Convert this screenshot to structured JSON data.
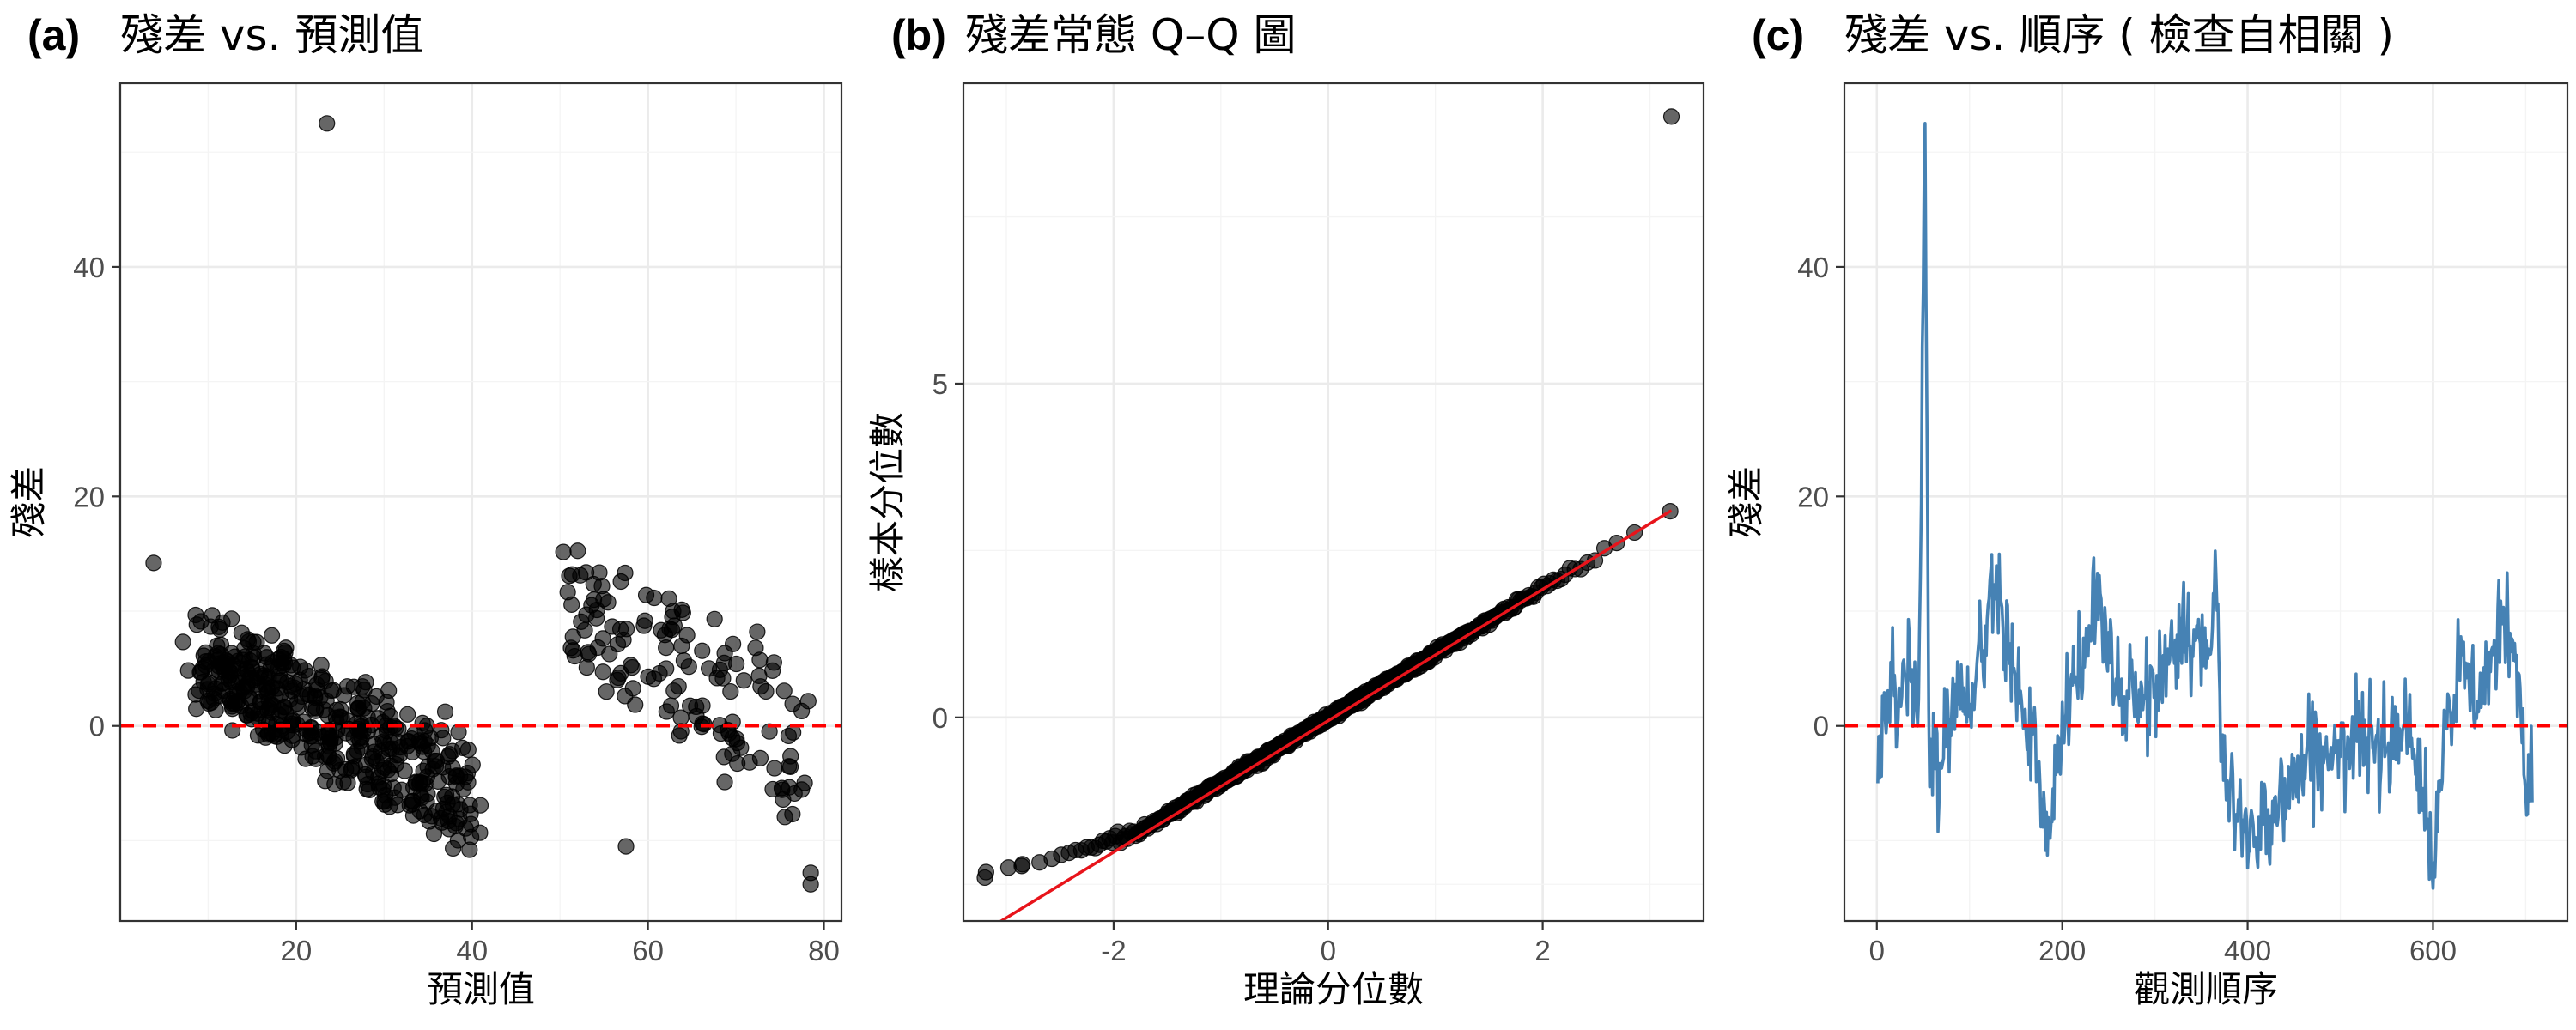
{
  "colors": {
    "points_fill": "#000000",
    "points_opacity": 0.6,
    "zero_line": "#ff0000",
    "qq_line": "#e8141b",
    "trace_line": "#4682b4",
    "grid": "#ebebeb",
    "frame": "#333333"
  },
  "chart_data": [
    {
      "id": "a",
      "type": "scatter",
      "tag": "(a)",
      "title": "殘差 vs. 預測值",
      "xlabel": "預測值",
      "ylabel": "殘差",
      "xlim": [
        0,
        82
      ],
      "ylim": [
        -17,
        56
      ],
      "x_ticks": [
        20,
        40,
        60,
        80
      ],
      "y_ticks": [
        0,
        20,
        40
      ],
      "grid": true,
      "reference_line": {
        "y": 0,
        "style": "dashed",
        "color": "#ff0000"
      },
      "notable_points": [
        [
          23.5,
          52.5
        ],
        [
          3.8,
          14.2
        ],
        [
          57.5,
          -10.5
        ],
        [
          78.5,
          -12.8
        ],
        [
          78.5,
          -13.8
        ]
      ],
      "clusters": [
        {
          "x_range": [
            9,
            40
          ],
          "y_at_start": [
            3,
            9.5
          ],
          "y_at_end": [
            -11,
            -2
          ],
          "count": 450
        },
        {
          "x_range": [
            51,
            79
          ],
          "y_at_start": [
            6,
            15
          ],
          "y_at_end": [
            -9,
            5
          ],
          "count": 140
        }
      ]
    },
    {
      "id": "b",
      "type": "scatter",
      "subtype": "qq",
      "tag": "(b)",
      "title": "殘差常態 Q–Q 圖",
      "xlabel": "理論分位數",
      "ylabel": "樣本分位數",
      "xlim": [
        -3.4,
        3.5
      ],
      "ylim": [
        -3.05,
        9.5
      ],
      "x_ticks": [
        -2,
        0,
        2
      ],
      "y_ticks": [
        0,
        5
      ],
      "grid": true,
      "reference_line": {
        "x": [
          -3.2,
          3.2
        ],
        "y": [
          -3.2,
          3.1
        ],
        "color": "#e8141b"
      },
      "notable_points": [
        [
          3.2,
          9.0
        ],
        [
          -3.2,
          -2.4
        ],
        [
          -2.98,
          -2.25
        ],
        [
          -2.85,
          -2.2
        ]
      ],
      "n_points": 700
    },
    {
      "id": "c",
      "type": "line",
      "tag": "(c)",
      "title": "殘差 vs. 順序 ( 檢查自相關 )",
      "xlabel": "觀測順序",
      "ylabel": "殘差",
      "xlim": [
        -35,
        745
      ],
      "ylim": [
        -17,
        56
      ],
      "x_ticks": [
        0,
        200,
        400,
        600
      ],
      "y_ticks": [
        0,
        20,
        40
      ],
      "grid": true,
      "reference_line": {
        "y": 0,
        "style": "dashed",
        "color": "#ff0000"
      },
      "series": [
        {
          "x_range": [
            1,
            707
          ],
          "anchors": [
            [
              1,
              -1
            ],
            [
              20,
              2
            ],
            [
              35,
              6
            ],
            [
              45,
              1
            ],
            [
              52,
              52.5
            ],
            [
              56,
              0
            ],
            [
              70,
              -3
            ],
            [
              85,
              3
            ],
            [
              100,
              3
            ],
            [
              115,
              6
            ],
            [
              125,
              14
            ],
            [
              140,
              9
            ],
            [
              150,
              5
            ],
            [
              160,
              0
            ],
            [
              175,
              -4
            ],
            [
              185,
              -12
            ],
            [
              195,
              -3
            ],
            [
              210,
              3
            ],
            [
              230,
              8
            ],
            [
              240,
              12
            ],
            [
              255,
              4
            ],
            [
              270,
              2
            ],
            [
              290,
              2
            ],
            [
              310,
              5
            ],
            [
              330,
              9
            ],
            [
              345,
              7
            ],
            [
              360,
              5
            ],
            [
              365,
              14
            ],
            [
              372,
              -3
            ],
            [
              385,
              -7
            ],
            [
              400,
              -9
            ],
            [
              420,
              -8
            ],
            [
              440,
              -6
            ],
            [
              460,
              -3
            ],
            [
              480,
              -2
            ],
            [
              500,
              -3
            ],
            [
              520,
              -1
            ],
            [
              540,
              -1
            ],
            [
              560,
              -1
            ],
            [
              570,
              3
            ],
            [
              585,
              -5
            ],
            [
              600,
              -12
            ],
            [
              615,
              0
            ],
            [
              630,
              5
            ],
            [
              650,
              2
            ],
            [
              665,
              6
            ],
            [
              680,
              9
            ],
            [
              693,
              3
            ],
            [
              700,
              -5
            ],
            [
              707,
              -3
            ]
          ]
        }
      ]
    }
  ]
}
